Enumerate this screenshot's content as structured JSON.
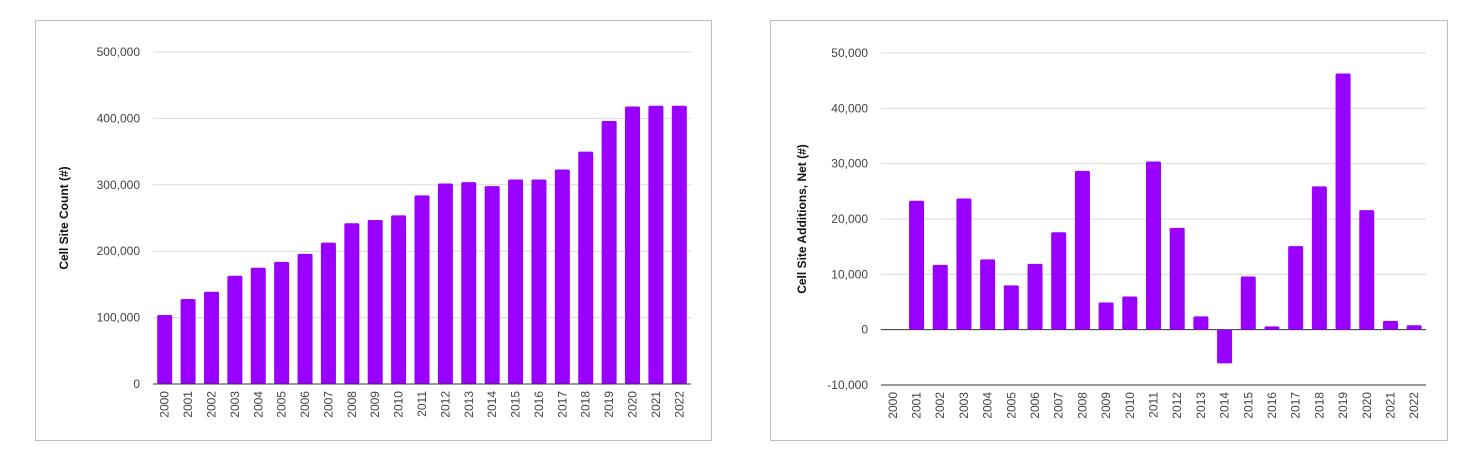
{
  "colors": {
    "bar": "#9900ff"
  },
  "chart_data": [
    {
      "type": "bar",
      "title": "",
      "xlabel": "",
      "ylabel": "Cell Site Count (#)",
      "categories": [
        "2000",
        "2001",
        "2002",
        "2003",
        "2004",
        "2005",
        "2006",
        "2007",
        "2008",
        "2009",
        "2010",
        "2011",
        "2012",
        "2013",
        "2014",
        "2015",
        "2016",
        "2017",
        "2018",
        "2019",
        "2020",
        "2021",
        "2022"
      ],
      "values": [
        104000,
        128000,
        139000,
        163000,
        175000,
        184000,
        196000,
        213000,
        242000,
        247000,
        254000,
        284000,
        302000,
        304000,
        298000,
        308000,
        308000,
        323000,
        350000,
        396000,
        418000,
        419000,
        419000
      ],
      "ylim": [
        0,
        500000
      ],
      "yticks": [
        0,
        100000,
        200000,
        300000,
        400000,
        500000
      ],
      "ytick_labels": [
        "0",
        "100,000",
        "200,000",
        "300,000",
        "400,000",
        "500,000"
      ],
      "grid": true,
      "legend": "none"
    },
    {
      "type": "bar",
      "title": "",
      "xlabel": "",
      "ylabel": "Cell Site Additions, Net (#)",
      "categories": [
        "2000",
        "2001",
        "2002",
        "2003",
        "2004",
        "2005",
        "2006",
        "2007",
        "2008",
        "2009",
        "2010",
        "2011",
        "2012",
        "2013",
        "2014",
        "2015",
        "2016",
        "2017",
        "2018",
        "2019",
        "2020",
        "2021",
        "2022"
      ],
      "values": [
        0,
        23300,
        11700,
        23700,
        12700,
        8000,
        11900,
        17600,
        28700,
        4900,
        6000,
        30400,
        18400,
        2400,
        -6100,
        9600,
        600,
        15100,
        25900,
        46300,
        21600,
        1600,
        800
      ],
      "ylim": [
        -10000,
        50000
      ],
      "yticks": [
        -10000,
        0,
        10000,
        20000,
        30000,
        40000,
        50000
      ],
      "ytick_labels": [
        "-10,000",
        "0",
        "10,000",
        "20,000",
        "30,000",
        "40,000",
        "50,000"
      ],
      "grid": true,
      "legend": "none"
    }
  ]
}
